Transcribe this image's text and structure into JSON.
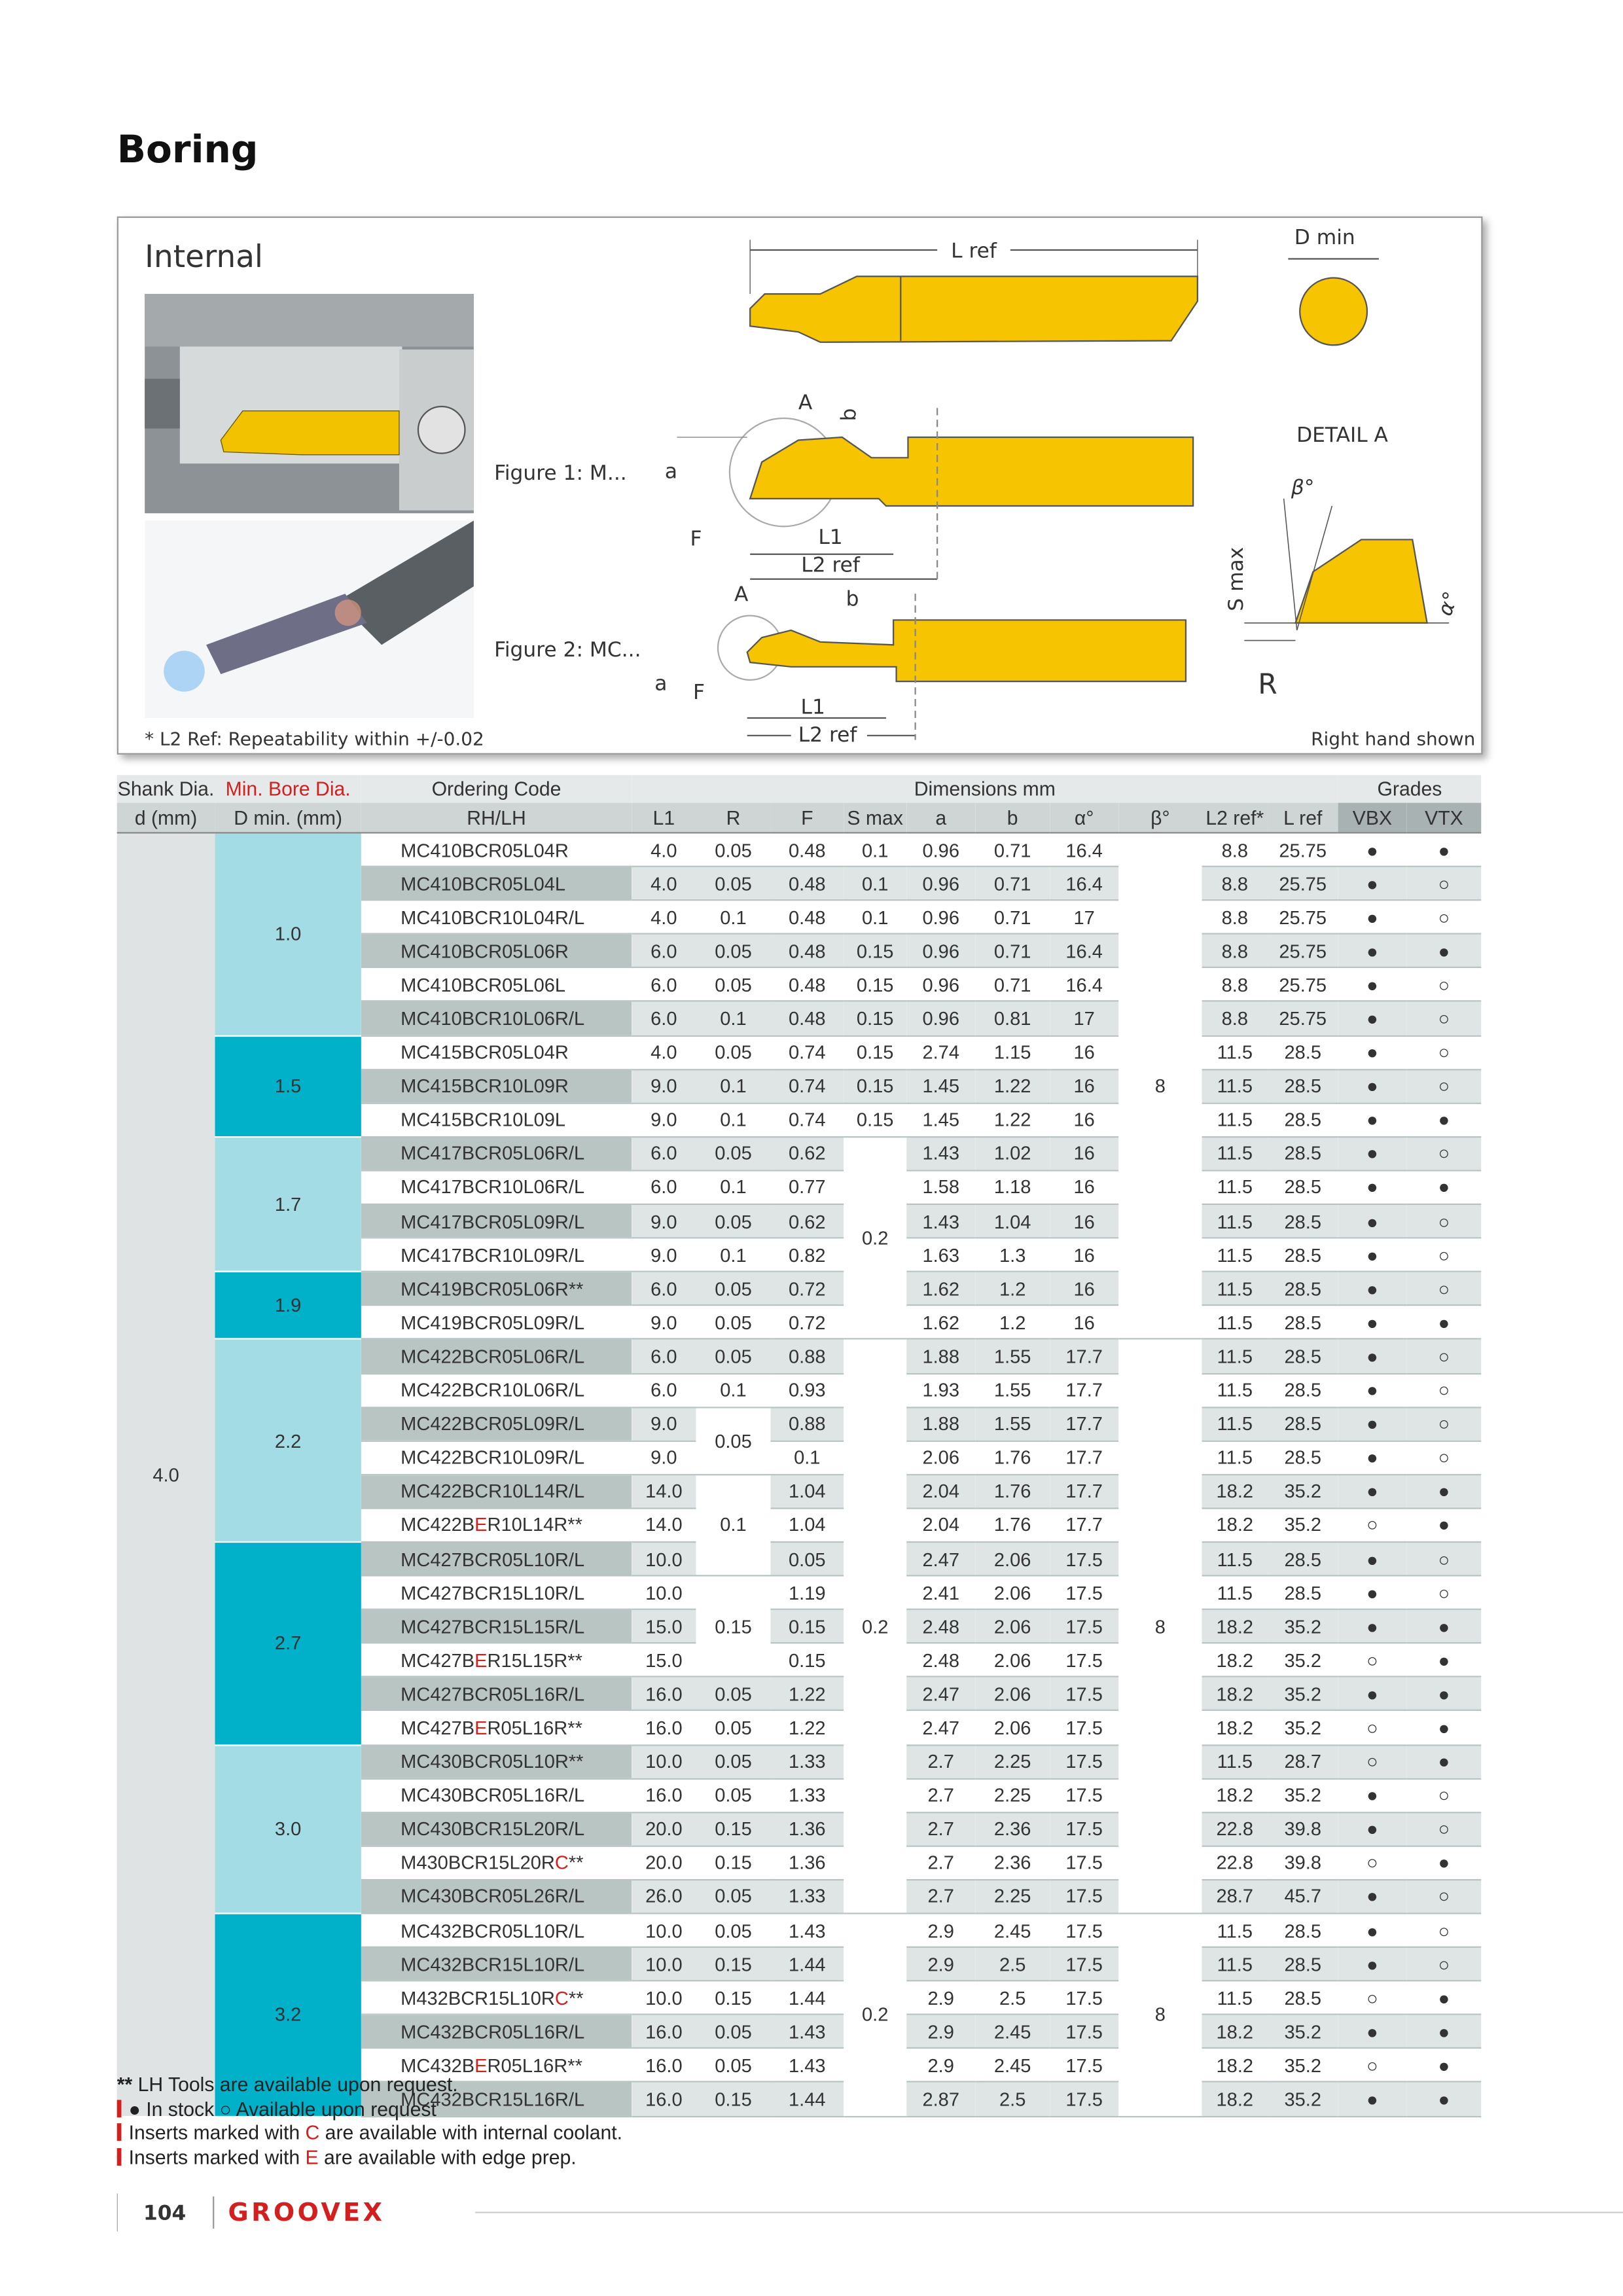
{
  "header": {
    "title": "Boring"
  },
  "figure": {
    "title": "Internal",
    "top": {
      "L_ref": "L ref"
    },
    "end_view": {
      "D_min": "D min"
    },
    "fig1": {
      "caption": "Figure 1: M...",
      "A": "A",
      "b": "b",
      "a": "a",
      "F": "F",
      "L1": "L1",
      "L2": "L2 ref"
    },
    "fig2": {
      "caption": "Figure 2: MC...",
      "A": "A",
      "b": "b",
      "a": "a",
      "F": "F",
      "L1": "L1",
      "L2": "L2 ref"
    },
    "detail": {
      "title": "DETAIL A",
      "beta": "β°",
      "s_max": "S max",
      "alpha": "α°",
      "R": "R"
    },
    "note": "* L2 Ref: Repeatability within +/-0.02",
    "hand": "Right hand shown"
  },
  "table": {
    "group_headers": {
      "shank": "Shank Dia.",
      "bore": "Min. Bore Dia.",
      "code": "Ordering Code",
      "dims": "Dimensions mm",
      "grades": "Grades"
    },
    "column_headers": [
      "d (mm)",
      "D min. (mm)",
      "RH/LH",
      "L1",
      "R",
      "F",
      "S max",
      "a",
      "b",
      "α°",
      "β°",
      "L2 ref*",
      "L ref",
      "VBX",
      "VTX"
    ],
    "rows": [
      {
        "d": "4.0",
        "d_min": "1.0",
        "code": "MC410BCR05L04R",
        "L1": "4.0",
        "R": "0.05",
        "F": "0.48",
        "S_max": "0.1",
        "a": "0.96",
        "b": "0.71",
        "alpha": "16.4",
        "beta": "8",
        "L2_ref": "8.8",
        "L_ref": "25.75",
        "VBX": "●",
        "VTX": "●"
      },
      {
        "code": "MC410BCR05L04L",
        "L1": "4.0",
        "R": "0.05",
        "F": "0.48",
        "S_max": "0.1",
        "a": "0.96",
        "b": "0.71",
        "alpha": "16.4",
        "L2_ref": "8.8",
        "L_ref": "25.75",
        "VBX": "●",
        "VTX": "○"
      },
      {
        "code": "MC410BCR10L04R/L",
        "L1": "4.0",
        "R": "0.1",
        "F": "0.48",
        "S_max": "0.1",
        "a": "0.96",
        "b": "0.71",
        "alpha": "17",
        "L2_ref": "8.8",
        "L_ref": "25.75",
        "VBX": "●",
        "VTX": "○"
      },
      {
        "code": "MC410BCR05L06R",
        "L1": "6.0",
        "R": "0.05",
        "F": "0.48",
        "S_max": "0.15",
        "a": "0.96",
        "b": "0.71",
        "alpha": "16.4",
        "L2_ref": "8.8",
        "L_ref": "25.75",
        "VBX": "●",
        "VTX": "●"
      },
      {
        "code": "MC410BCR05L06L",
        "L1": "6.0",
        "R": "0.05",
        "F": "0.48",
        "S_max": "0.15",
        "a": "0.96",
        "b": "0.71",
        "alpha": "16.4",
        "L2_ref": "8.8",
        "L_ref": "25.75",
        "VBX": "●",
        "VTX": "○"
      },
      {
        "code": "MC410BCR10L06R/L",
        "L1": "6.0",
        "R": "0.1",
        "F": "0.48",
        "S_max": "0.15",
        "a": "0.96",
        "b": "0.81",
        "alpha": "17",
        "L2_ref": "8.8",
        "L_ref": "25.75",
        "VBX": "●",
        "VTX": "○"
      },
      {
        "d_min": "1.5",
        "code": "MC415BCR05L04R",
        "L1": "4.0",
        "R": "0.05",
        "F": "0.74",
        "S_max": "0.15",
        "a": "2.74",
        "b": "1.15",
        "alpha": "16",
        "L2_ref": "11.5",
        "L_ref": "28.5",
        "VBX": "●",
        "VTX": "○"
      },
      {
        "code": "MC415BCR10L09R",
        "L1": "9.0",
        "R": "0.1",
        "F": "0.74",
        "S_max": "0.15",
        "a": "1.45",
        "b": "1.22",
        "alpha": "16",
        "L2_ref": "11.5",
        "L_ref": "28.5",
        "VBX": "●",
        "VTX": "○"
      },
      {
        "code": "MC415BCR10L09L",
        "L1": "9.0",
        "R": "0.1",
        "F": "0.74",
        "S_max": "0.15",
        "a": "1.45",
        "b": "1.22",
        "alpha": "16",
        "L2_ref": "11.5",
        "L_ref": "28.5",
        "VBX": "●",
        "VTX": "●"
      },
      {
        "d_min": "1.7",
        "code": "MC417BCR05L06R/L",
        "L1": "6.0",
        "R": "0.05",
        "F": "0.62",
        "S_max": "0.2",
        "a": "1.43",
        "b": "1.02",
        "alpha": "16",
        "L2_ref": "11.5",
        "L_ref": "28.5",
        "VBX": "●",
        "VTX": "○"
      },
      {
        "code": "MC417BCR10L06R/L",
        "L1": "6.0",
        "R": "0.1",
        "F": "0.77",
        "a": "1.58",
        "b": "1.18",
        "alpha": "16",
        "L2_ref": "11.5",
        "L_ref": "28.5",
        "VBX": "●",
        "VTX": "●"
      },
      {
        "code": "MC417BCR05L09R/L",
        "L1": "9.0",
        "R": "0.05",
        "F": "0.62",
        "a": "1.43",
        "b": "1.04",
        "alpha": "16",
        "L2_ref": "11.5",
        "L_ref": "28.5",
        "VBX": "●",
        "VTX": "○"
      },
      {
        "code": "MC417BCR10L09R/L",
        "L1": "9.0",
        "R": "0.1",
        "F": "0.82",
        "a": "1.63",
        "b": "1.3",
        "alpha": "16",
        "L2_ref": "11.5",
        "L_ref": "28.5",
        "VBX": "●",
        "VTX": "○"
      },
      {
        "d_min": "1.9",
        "code": "MC419BCR05L06R**",
        "L1": "6.0",
        "R": "0.05",
        "F": "0.72",
        "a": "1.62",
        "b": "1.2",
        "alpha": "16",
        "L2_ref": "11.5",
        "L_ref": "28.5",
        "VBX": "●",
        "VTX": "○"
      },
      {
        "code": "MC419BCR05L09R/L",
        "L1": "9.0",
        "R": "0.05",
        "F": "0.72",
        "a": "1.62",
        "b": "1.2",
        "alpha": "16",
        "L2_ref": "11.5",
        "L_ref": "28.5",
        "VBX": "●",
        "VTX": "●"
      },
      {
        "d_min": "2.2",
        "code": "MC422BCR05L06R/L",
        "L1": "6.0",
        "R": "0.05",
        "F": "0.88",
        "S_max": "0.2",
        "a": "1.88",
        "b": "1.55",
        "alpha": "17.7",
        "beta": "8",
        "L2_ref": "11.5",
        "L_ref": "28.5",
        "VBX": "●",
        "VTX": "○"
      },
      {
        "code": "MC422BCR10L06R/L",
        "L1": "6.0",
        "R": "0.1",
        "F": "0.93",
        "a": "1.93",
        "b": "1.55",
        "alpha": "17.7",
        "L2_ref": "11.5",
        "L_ref": "28.5",
        "VBX": "●",
        "VTX": "○"
      },
      {
        "code": "MC422BCR05L09R/L",
        "L1": "9.0",
        "R": "0.05",
        "F": "0.88",
        "a": "1.88",
        "b": "1.55",
        "alpha": "17.7",
        "L2_ref": "11.5",
        "L_ref": "28.5",
        "VBX": "●",
        "VTX": "○"
      },
      {
        "code": "MC422BCR10L09R/L",
        "L1": "9.0",
        "F": "0.1",
        "a": "2.06",
        "b": "1.76",
        "alpha": "17.7",
        "L2_ref": "11.5",
        "L_ref": "28.5",
        "VBX": "●",
        "VTX": "○"
      },
      {
        "code": "MC422BCR10L14R/L",
        "L1": "14.0",
        "R": "0.1",
        "F": "1.04",
        "a": "2.04",
        "b": "1.76",
        "alpha": "17.7",
        "L2_ref": "18.2",
        "L_ref": "35.2",
        "VBX": "●",
        "VTX": "●"
      },
      {
        "code": [
          "MC422B",
          "E",
          "R10L14R**"
        ],
        "L1": "14.0",
        "F": "1.04",
        "a": "2.04",
        "b": "1.76",
        "alpha": "17.7",
        "L2_ref": "18.2",
        "L_ref": "35.2",
        "VBX": "○",
        "VTX": "●"
      },
      {
        "d_min": "2.7",
        "code": "MC427BCR05L10R/L",
        "L1": "10.0",
        "F": "0.05",
        "a": "2.47",
        "b": "2.06",
        "alpha": "17.5",
        "L2_ref": "11.5",
        "L_ref": "28.5",
        "VBX": "●",
        "VTX": "○"
      },
      {
        "code": "MC427BCR15L10R/L",
        "L1": "10.0",
        "R": "0.15",
        "F": "1.19",
        "a": "2.41",
        "b": "2.06",
        "alpha": "17.5",
        "L2_ref": "11.5",
        "L_ref": "28.5",
        "VBX": "●",
        "VTX": "○"
      },
      {
        "code": "MC427BCR15L15R/L",
        "L1": "15.0",
        "F": "0.15",
        "a": "2.48",
        "b": "2.06",
        "alpha": "17.5",
        "L2_ref": "18.2",
        "L_ref": "35.2",
        "VBX": "●",
        "VTX": "●"
      },
      {
        "code": [
          "MC427B",
          "E",
          "R15L15R**"
        ],
        "L1": "15.0",
        "F": "0.15",
        "a": "2.48",
        "b": "2.06",
        "alpha": "17.5",
        "L2_ref": "18.2",
        "L_ref": "35.2",
        "VBX": "○",
        "VTX": "●"
      },
      {
        "code": "MC427BCR05L16R/L",
        "L1": "16.0",
        "R": "0.05",
        "F": "1.22",
        "a": "2.47",
        "b": "2.06",
        "alpha": "17.5",
        "L2_ref": "18.2",
        "L_ref": "35.2",
        "VBX": "●",
        "VTX": "●"
      },
      {
        "code": [
          "MC427B",
          "E",
          "R05L16R**"
        ],
        "L1": "16.0",
        "R": "0.05",
        "F": "1.22",
        "a": "2.47",
        "b": "2.06",
        "alpha": "17.5",
        "L2_ref": "18.2",
        "L_ref": "35.2",
        "VBX": "○",
        "VTX": "●"
      },
      {
        "d_min": "3.0",
        "code": "MC430BCR05L10R**",
        "L1": "10.0",
        "R": "0.05",
        "F": "1.33",
        "a": "2.7",
        "b": "2.25",
        "alpha": "17.5",
        "L2_ref": "11.5",
        "L_ref": "28.7",
        "VBX": "○",
        "VTX": "●"
      },
      {
        "code": "MC430BCR05L16R/L",
        "L1": "16.0",
        "R": "0.05",
        "F": "1.33",
        "a": "2.7",
        "b": "2.25",
        "alpha": "17.5",
        "L2_ref": "18.2",
        "L_ref": "35.2",
        "VBX": "●",
        "VTX": "○"
      },
      {
        "code": "MC430BCR15L20R/L",
        "L1": "20.0",
        "R": "0.15",
        "F": "1.36",
        "a": "2.7",
        "b": "2.36",
        "alpha": "17.5",
        "L2_ref": "22.8",
        "L_ref": "39.8",
        "VBX": "●",
        "VTX": "○"
      },
      {
        "code": [
          "M430BCR15L20R",
          "C",
          "**"
        ],
        "L1": "20.0",
        "R": "0.15",
        "F": "1.36",
        "a": "2.7",
        "b": "2.36",
        "alpha": "17.5",
        "L2_ref": "22.8",
        "L_ref": "39.8",
        "VBX": "○",
        "VTX": "●"
      },
      {
        "code": "MC430BCR05L26R/L",
        "L1": "26.0",
        "R": "0.05",
        "F": "1.33",
        "a": "2.7",
        "b": "2.25",
        "alpha": "17.5",
        "L2_ref": "28.7",
        "L_ref": "45.7",
        "VBX": "●",
        "VTX": "○"
      },
      {
        "d_min": "3.2",
        "code": "MC432BCR05L10R/L",
        "L1": "10.0",
        "R": "0.05",
        "F": "1.43",
        "S_max": "0.2",
        "a": "2.9",
        "b": "2.45",
        "alpha": "17.5",
        "beta": "8",
        "L2_ref": "11.5",
        "L_ref": "28.5",
        "VBX": "●",
        "VTX": "○"
      },
      {
        "code": "MC432BCR15L10R/L",
        "L1": "10.0",
        "R": "0.15",
        "F": "1.44",
        "a": "2.9",
        "b": "2.5",
        "alpha": "17.5",
        "L2_ref": "11.5",
        "L_ref": "28.5",
        "VBX": "●",
        "VTX": "○"
      },
      {
        "code": [
          "M432BCR15L10R",
          "C",
          "**"
        ],
        "L1": "10.0",
        "R": "0.15",
        "F": "1.44",
        "a": "2.9",
        "b": "2.5",
        "alpha": "17.5",
        "L2_ref": "11.5",
        "L_ref": "28.5",
        "VBX": "○",
        "VTX": "●"
      },
      {
        "code": "MC432BCR05L16R/L",
        "L1": "16.0",
        "R": "0.05",
        "F": "1.43",
        "a": "2.9",
        "b": "2.45",
        "alpha": "17.5",
        "L2_ref": "18.2",
        "L_ref": "35.2",
        "VBX": "●",
        "VTX": "●"
      },
      {
        "code": [
          "MC432B",
          "E",
          "R05L16R**"
        ],
        "L1": "16.0",
        "R": "0.05",
        "F": "1.43",
        "a": "2.9",
        "b": "2.45",
        "alpha": "17.5",
        "L2_ref": "18.2",
        "L_ref": "35.2",
        "VBX": "○",
        "VTX": "●"
      },
      {
        "code": "MC432BCR15L16R/L",
        "L1": "16.0",
        "R": "0.15",
        "F": "1.44",
        "a": "2.87",
        "b": "2.5",
        "alpha": "17.5",
        "L2_ref": "18.2",
        "L_ref": "35.2",
        "VBX": "●",
        "VTX": "●"
      }
    ]
  },
  "notes": {
    "lh": [
      "**",
      " LH Tools are available upon request."
    ],
    "stock": [
      "●",
      " In stock ",
      "○",
      " Available upon request"
    ],
    "coolant": [
      "Inserts marked with ",
      "C",
      " are available with internal coolant."
    ],
    "edge": [
      "Inserts marked with ",
      "E",
      " are available with edge prep."
    ]
  },
  "footer": {
    "page": "104",
    "brand": "GROOVEX"
  }
}
